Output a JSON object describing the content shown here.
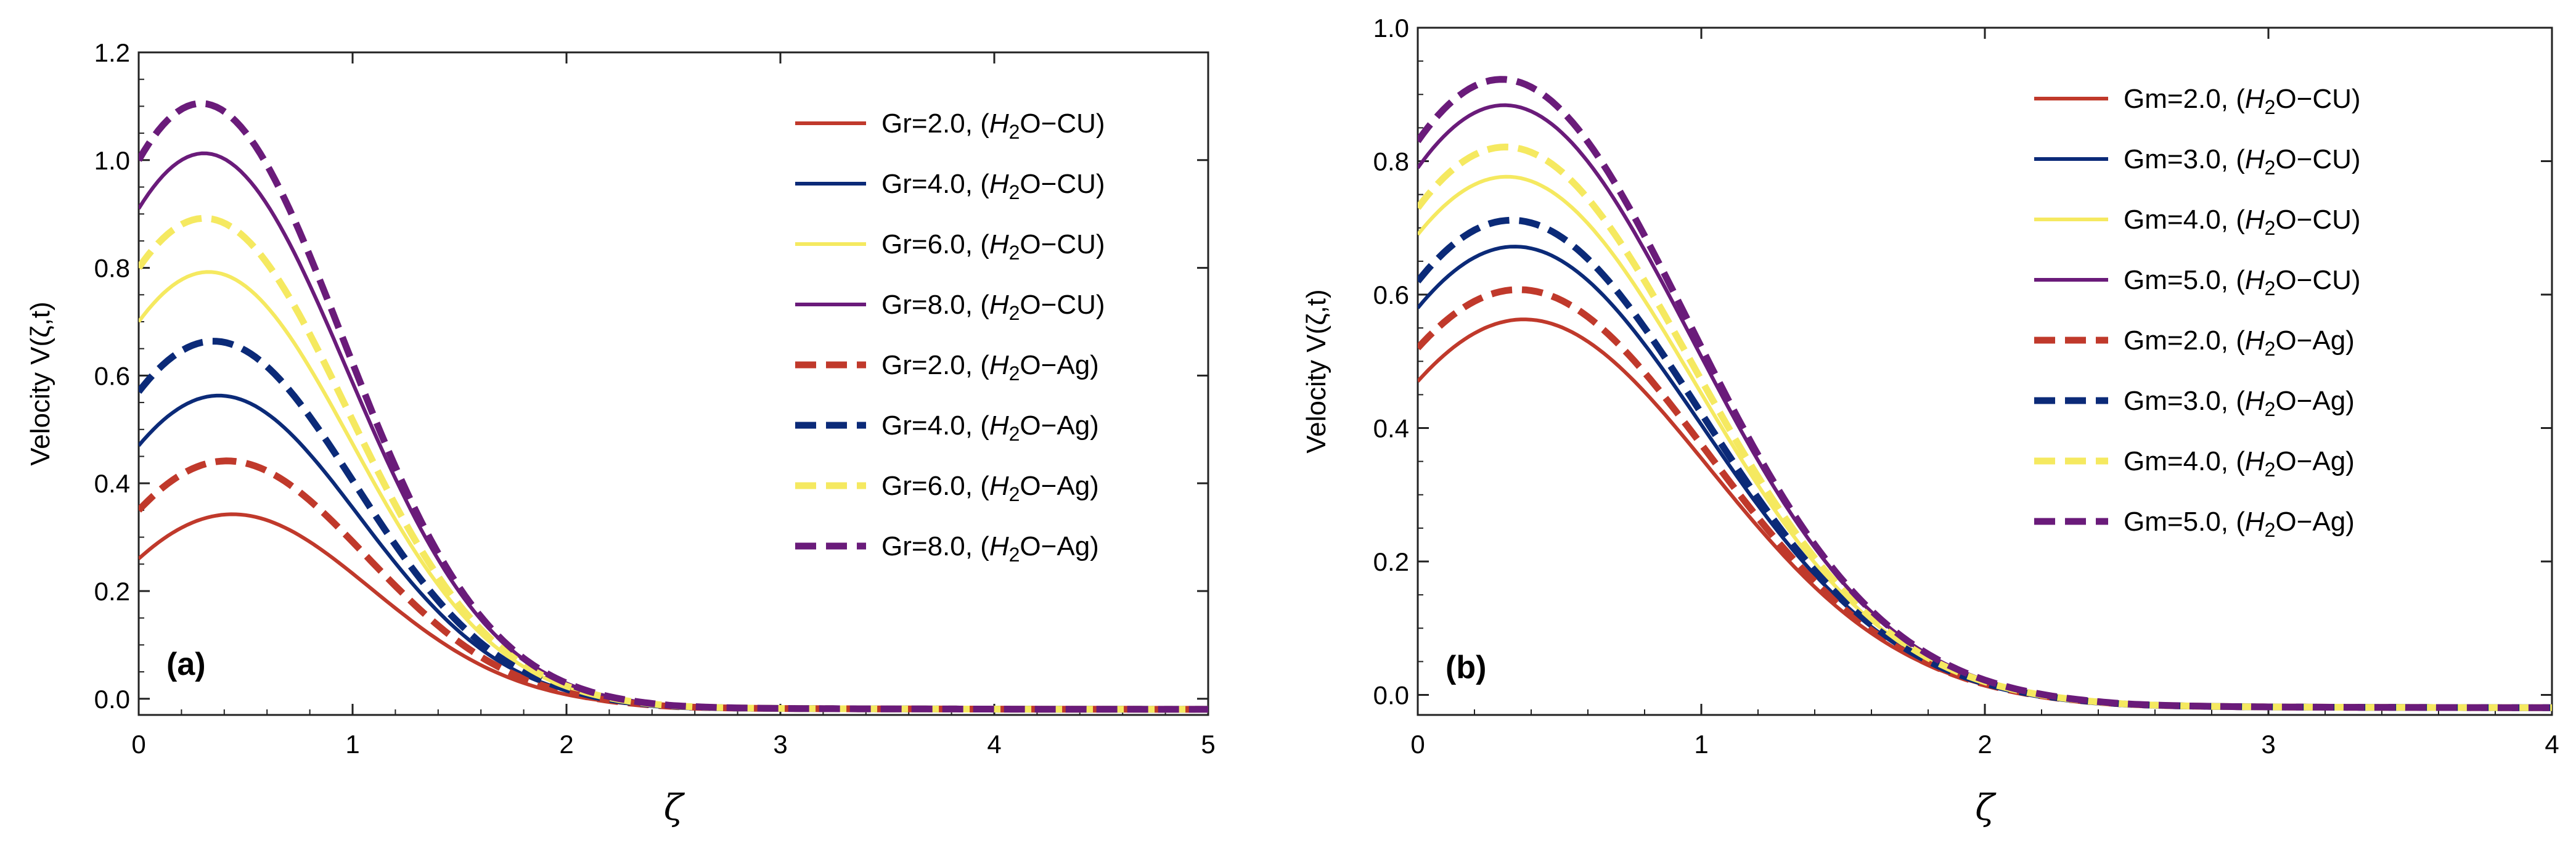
{
  "chart_data": [
    {
      "type": "line",
      "panel_label": "(a)",
      "xlabel": "ζ",
      "ylabel": "Velocity V(ζ,t)",
      "xlim": [
        0,
        5
      ],
      "ylim": [
        -0.03,
        1.2
      ],
      "xticks": [
        "0",
        "1",
        "2",
        "3",
        "4",
        "5"
      ],
      "yticks": [
        "0.0",
        "0.2",
        "0.4",
        "0.6",
        "0.8",
        "1.0",
        "1.2"
      ],
      "legend_position": "top-right",
      "series": [
        {
          "param": "Gr",
          "value": "2.0",
          "fluid_base": "H",
          "fluid_sub": "2",
          "fluid_rest": "O−CU",
          "color": "#c0392b",
          "style": "solid",
          "y0": 0.26,
          "peak_x": 0.4,
          "peak": 0.36
        },
        {
          "param": "Gr",
          "value": "4.0",
          "fluid_base": "H",
          "fluid_sub": "2",
          "fluid_rest": "O−CU",
          "color": "#0b2a78",
          "style": "solid",
          "y0": 0.47,
          "peak_x": 0.35,
          "peak": 0.58
        },
        {
          "param": "Gr",
          "value": "6.0",
          "fluid_base": "H",
          "fluid_sub": "2",
          "fluid_rest": "O−CU",
          "color": "#f5e960",
          "style": "solid",
          "y0": 0.7,
          "peak_x": 0.32,
          "peak": 0.8
        },
        {
          "param": "Gr",
          "value": "8.0",
          "fluid_base": "H",
          "fluid_sub": "2",
          "fluid_rest": "O−CU",
          "color": "#6a1b7a",
          "style": "solid",
          "y0": 0.91,
          "peak_x": 0.3,
          "peak": 1.02
        },
        {
          "param": "Gr",
          "value": "2.0",
          "fluid_base": "H",
          "fluid_sub": "2",
          "fluid_rest": "O−Ag",
          "color": "#c0392b",
          "style": "dashed",
          "y0": 0.35,
          "peak_x": 0.38,
          "peak": 0.46
        },
        {
          "param": "Gr",
          "value": "4.0",
          "fluid_base": "H",
          "fluid_sub": "2",
          "fluid_rest": "O−Ag",
          "color": "#0b2a78",
          "style": "dashed",
          "y0": 0.57,
          "peak_x": 0.33,
          "peak": 0.68
        },
        {
          "param": "Gr",
          "value": "6.0",
          "fluid_base": "H",
          "fluid_sub": "2",
          "fluid_rest": "O−Ag",
          "color": "#f5e960",
          "style": "dashed",
          "y0": 0.8,
          "peak_x": 0.3,
          "peak": 0.9
        },
        {
          "param": "Gr",
          "value": "8.0",
          "fluid_base": "H",
          "fluid_sub": "2",
          "fluid_rest": "O−Ag",
          "color": "#6a1b7a",
          "style": "dashed",
          "y0": 1.0,
          "peak_x": 0.28,
          "peak": 1.12
        }
      ]
    },
    {
      "type": "line",
      "panel_label": "(b)",
      "xlabel": "ζ",
      "ylabel": "Velocity V(ζ,t)",
      "xlim": [
        0,
        4
      ],
      "ylim": [
        -0.03,
        1.0
      ],
      "xticks": [
        "0",
        "1",
        "2",
        "3",
        "4"
      ],
      "yticks": [
        "0.0",
        "0.2",
        "0.4",
        "0.6",
        "0.8",
        "1.0"
      ],
      "legend_position": "top-right",
      "series": [
        {
          "param": "Gm",
          "value": "2.0",
          "fluid_base": "H",
          "fluid_sub": "2",
          "fluid_rest": "O−CU",
          "color": "#c0392b",
          "style": "solid",
          "y0": 0.47,
          "peak_x": 0.35,
          "peak": 0.58
        },
        {
          "param": "Gm",
          "value": "3.0",
          "fluid_base": "H",
          "fluid_sub": "2",
          "fluid_rest": "O−CU",
          "color": "#0b2a78",
          "style": "solid",
          "y0": 0.58,
          "peak_x": 0.32,
          "peak": 0.69
        },
        {
          "param": "Gm",
          "value": "4.0",
          "fluid_base": "H",
          "fluid_sub": "2",
          "fluid_rest": "O−CU",
          "color": "#f5e960",
          "style": "solid",
          "y0": 0.69,
          "peak_x": 0.3,
          "peak": 0.79
        },
        {
          "param": "Gm",
          "value": "5.0",
          "fluid_base": "H",
          "fluid_sub": "2",
          "fluid_rest": "O−CU",
          "color": "#6a1b7a",
          "style": "solid",
          "y0": 0.79,
          "peak_x": 0.29,
          "peak": 0.9
        },
        {
          "param": "Gm",
          "value": "2.0",
          "fluid_base": "H",
          "fluid_sub": "2",
          "fluid_rest": "O−Ag",
          "color": "#c0392b",
          "style": "dashed",
          "y0": 0.52,
          "peak_x": 0.34,
          "peak": 0.62
        },
        {
          "param": "Gm",
          "value": "3.0",
          "fluid_base": "H",
          "fluid_sub": "2",
          "fluid_rest": "O−Ag",
          "color": "#0b2a78",
          "style": "dashed",
          "y0": 0.62,
          "peak_x": 0.31,
          "peak": 0.73
        },
        {
          "param": "Gm",
          "value": "4.0",
          "fluid_base": "H",
          "fluid_sub": "2",
          "fluid_rest": "O−Ag",
          "color": "#f5e960",
          "style": "dashed",
          "y0": 0.73,
          "peak_x": 0.29,
          "peak": 0.84
        },
        {
          "param": "Gm",
          "value": "5.0",
          "fluid_base": "H",
          "fluid_sub": "2",
          "fluid_rest": "O−Ag",
          "color": "#6a1b7a",
          "style": "dashed",
          "y0": 0.83,
          "peak_x": 0.28,
          "peak": 0.94
        }
      ]
    }
  ]
}
